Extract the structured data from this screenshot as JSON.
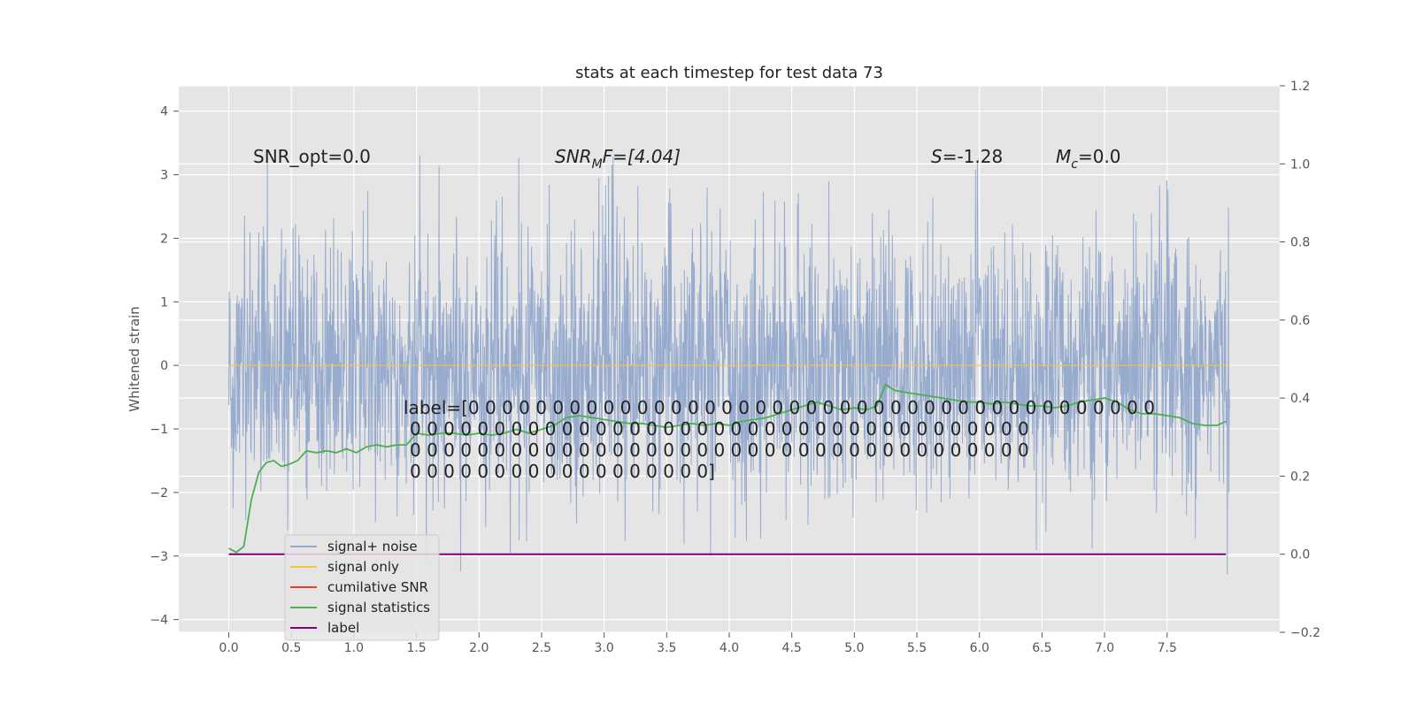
{
  "chart_data": {
    "type": "line",
    "title": "stats at each timestep for test data 73",
    "ylabel": "Whitened strain",
    "xlim": [
      -0.4,
      8.4
    ],
    "ylim": [
      -4.2,
      4.4
    ],
    "y2lim": [
      -0.2,
      1.2
    ],
    "xticks": [
      "0.0",
      "0.5",
      "1.0",
      "1.5",
      "2.0",
      "2.5",
      "3.0",
      "3.5",
      "4.0",
      "4.5",
      "5.0",
      "5.5",
      "6.0",
      "6.5",
      "7.0",
      "7.5"
    ],
    "yticks": [
      "−4",
      "−3",
      "−2",
      "−1",
      "0",
      "1",
      "2",
      "3",
      "4"
    ],
    "y2ticks": [
      "−0.2",
      "0.0",
      "0.2",
      "0.4",
      "0.6",
      "0.8",
      "1.0",
      "1.2"
    ],
    "grid": true,
    "legend_position": "lower-left",
    "annotations": {
      "snr_opt": "SNR_opt=0.0",
      "snr_mf_base": "SNR",
      "snr_mf_sub": "M",
      "snr_mf_rest": "F=[4.04]",
      "s_sym": "S",
      "s_val": "=-1.28",
      "mc_base": "M",
      "mc_sub": "c",
      "mc_rest": "=0.0"
    },
    "label_lines": [
      "label=[0 0 0 0 0 0 0 0 0 0 0 0 0 0 0 0 0 0 0 0 0 0 0 0 0 0 0 0 0 0 0 0 0 0 0 0 0 0 0 0 0",
      "0 0 0 0 0 0 0 0 0 0 0 0 0 0 0 0 0 0 0 0 0 0 0 0 0 0 0 0 0 0 0 0 0 0 0 0 0",
      "0 0 0 0 0 0 0 0 0 0 0 0 0 0 0 0 0 0 0 0 0 0 0 0 0 0 0 0 0 0 0 0 0 0 0 0 0",
      "0 0 0 0 0 0 0 0 0 0 0 0 0 0 0 0 0 0]"
    ],
    "series": [
      {
        "name": "signal+ noise",
        "color": "#92a8cc",
        "axis": "left",
        "x_range": [
          0.0,
          8.0
        ],
        "y_envelope": {
          "typical_range": [
            -1.8,
            1.8
          ],
          "max": 4.0,
          "min": -3.7
        }
      },
      {
        "name": "signal only",
        "color": "#f5c342",
        "axis": "left",
        "x": [
          0.0,
          8.0
        ],
        "y": [
          0.0,
          0.0
        ]
      },
      {
        "name": "cumilative SNR",
        "color": "#e8402b",
        "axis": "right",
        "x": [],
        "y": []
      },
      {
        "name": "signal statistics",
        "color": "#4caf50",
        "axis": "right",
        "x": [
          0.0,
          0.06,
          0.12,
          0.18,
          0.24,
          0.3,
          0.36,
          0.42,
          0.48,
          0.55,
          0.62,
          0.7,
          0.78,
          0.86,
          0.94,
          1.02,
          1.1,
          1.18,
          1.26,
          1.34,
          1.42,
          1.5,
          1.6,
          1.7,
          1.8,
          1.9,
          2.0,
          2.1,
          2.2,
          2.3,
          2.4,
          2.5,
          2.6,
          2.7,
          2.8,
          2.9,
          3.0,
          3.1,
          3.2,
          3.3,
          3.4,
          3.5,
          3.6,
          3.7,
          3.8,
          3.9,
          4.0,
          4.1,
          4.2,
          4.3,
          4.4,
          4.5,
          4.6,
          4.7,
          4.8,
          4.9,
          5.0,
          5.1,
          5.18,
          5.25,
          5.32,
          5.4,
          5.5,
          5.6,
          5.7,
          5.8,
          5.9,
          6.0,
          6.1,
          6.2,
          6.3,
          6.4,
          6.5,
          6.6,
          6.7,
          6.8,
          6.9,
          7.0,
          7.1,
          7.2,
          7.3,
          7.4,
          7.5,
          7.6,
          7.7,
          7.8,
          7.9,
          7.97
        ],
        "y": [
          0.015,
          0.005,
          0.02,
          0.14,
          0.21,
          0.235,
          0.24,
          0.225,
          0.23,
          0.24,
          0.265,
          0.26,
          0.265,
          0.26,
          0.27,
          0.26,
          0.275,
          0.28,
          0.275,
          0.28,
          0.28,
          0.31,
          0.305,
          0.31,
          0.31,
          0.305,
          0.31,
          0.305,
          0.31,
          0.32,
          0.31,
          0.32,
          0.33,
          0.35,
          0.355,
          0.35,
          0.345,
          0.34,
          0.335,
          0.335,
          0.33,
          0.325,
          0.33,
          0.335,
          0.33,
          0.335,
          0.33,
          0.34,
          0.345,
          0.35,
          0.36,
          0.37,
          0.38,
          0.39,
          0.38,
          0.37,
          0.375,
          0.37,
          0.38,
          0.435,
          0.42,
          0.415,
          0.41,
          0.405,
          0.4,
          0.395,
          0.39,
          0.39,
          0.385,
          0.39,
          0.385,
          0.38,
          0.38,
          0.375,
          0.38,
          0.39,
          0.395,
          0.4,
          0.39,
          0.37,
          0.36,
          0.36,
          0.355,
          0.35,
          0.335,
          0.33,
          0.33,
          0.34
        ]
      },
      {
        "name": "label",
        "color": "#800080",
        "axis": "right",
        "x": [
          0.0,
          7.97
        ],
        "y": [
          0.0,
          0.0
        ]
      }
    ]
  }
}
